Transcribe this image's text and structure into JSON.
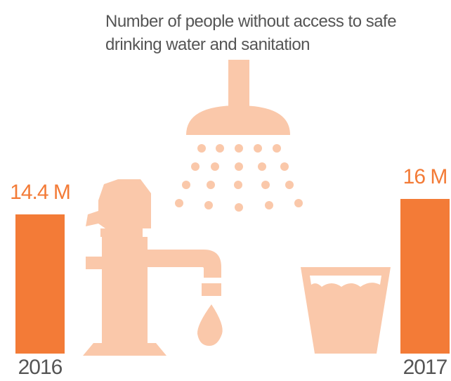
{
  "chart_data": {
    "type": "bar",
    "title": "Number of people without access to safe drinking water and sanitation",
    "categories": [
      "2016",
      "2017"
    ],
    "values": [
      14.4,
      16
    ],
    "value_labels": [
      "14.4 M",
      "16 M"
    ],
    "color": "#f37b37"
  }
}
